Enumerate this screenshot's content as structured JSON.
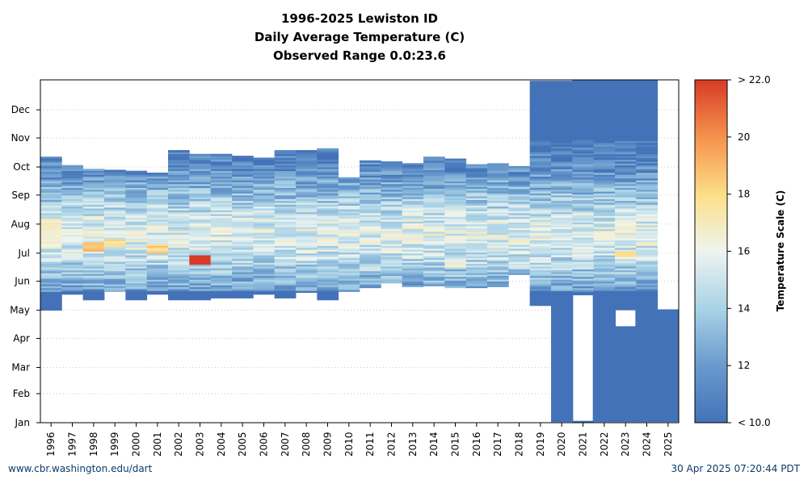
{
  "chart_data": {
    "type": "heatmap",
    "title": [
      "1996-2025 Lewiston ID",
      "Daily Average Temperature (C)",
      "Observed Range 0.0:23.6"
    ],
    "xlabel": "",
    "ylabel": "",
    "years": [
      "1996",
      "1997",
      "1998",
      "1999",
      "2000",
      "2001",
      "2002",
      "2003",
      "2004",
      "2005",
      "2006",
      "2007",
      "2008",
      "2009",
      "2010",
      "2011",
      "2012",
      "2013",
      "2014",
      "2015",
      "2016",
      "2017",
      "2018",
      "2019",
      "2020",
      "2021",
      "2022",
      "2023",
      "2024",
      "2025"
    ],
    "months": [
      "Jan",
      "Feb",
      "Mar",
      "Apr",
      "May",
      "Jun",
      "Jul",
      "Aug",
      "Sep",
      "Oct",
      "Nov",
      "Dec"
    ],
    "colorbar": {
      "label": "Temperature Scale (C)",
      "ticks": [
        "< 10.0",
        "12",
        "14",
        "16",
        "18",
        "20",
        "> 22.0"
      ],
      "tick_values": [
        10,
        12,
        14,
        16,
        18,
        20,
        22
      ],
      "min": 10,
      "max": 22
    },
    "colors": {
      "cold": "#4472b8",
      "cool": "#6a9bcd",
      "mild": "#a8d2e6",
      "neutral": "#eef4ef",
      "warm": "#fde08a",
      "hot": "#f5944d",
      "very_hot": "#d83a26"
    },
    "observed_day_ranges": [
      [
        [
          120,
          283
        ]
      ],
      [
        [
          137,
          274
        ]
      ],
      [
        [
          131,
          271
        ]
      ],
      [
        [
          140,
          270
        ]
      ],
      [
        [
          131,
          268
        ]
      ],
      [
        [
          137,
          266
        ]
      ],
      [
        [
          131,
          291
        ]
      ],
      [
        [
          131,
          286
        ]
      ],
      [
        [
          133,
          286
        ]
      ],
      [
        [
          133,
          285
        ]
      ],
      [
        [
          137,
          283
        ]
      ],
      [
        [
          133,
          291
        ]
      ],
      [
        [
          139,
          290
        ]
      ],
      [
        [
          131,
          293
        ]
      ],
      [
        [
          140,
          262
        ]
      ],
      [
        [
          144,
          280
        ]
      ],
      [
        [
          149,
          279
        ]
      ],
      [
        [
          145,
          277
        ]
      ],
      [
        [
          146,
          284
        ]
      ],
      [
        [
          144,
          281
        ]
      ],
      [
        [
          144,
          275
        ]
      ],
      [
        [
          145,
          276
        ]
      ],
      [
        [
          158,
          274
        ]
      ],
      [
        [
          125,
          365
        ]
      ],
      [
        [
          1,
          365
        ]
      ],
      [
        [
          2,
          367
        ],
        [
          0,
          1
        ]
      ],
      [
        [
          1,
          366
        ]
      ],
      [
        [
          1,
          366
        ]
      ],
      [
        [
          1,
          366
        ]
      ],
      [
        [
          1,
          120
        ]
      ]
    ],
    "gaps": [
      {
        "year": "2021",
        "from_day": 2,
        "to_day": 136,
        "note": "missing data"
      },
      {
        "year": "2023",
        "from_day": 103,
        "to_day": 120,
        "note": "missing data"
      }
    ],
    "hot_spells": [
      {
        "year": "1996",
        "from_day": 185,
        "to_day": 216,
        "max_c": 17.5
      },
      {
        "year": "1998",
        "from_day": 183,
        "to_day": 192,
        "max_c": 19.5
      },
      {
        "year": "1999",
        "from_day": 188,
        "to_day": 195,
        "max_c": 18.5
      },
      {
        "year": "2001",
        "from_day": 180,
        "to_day": 190,
        "max_c": 19.0
      },
      {
        "year": "2003",
        "from_day": 169,
        "to_day": 178,
        "max_c": 23.6
      },
      {
        "year": "2015",
        "from_day": 165,
        "to_day": 172,
        "max_c": 17.0
      },
      {
        "year": "2023",
        "from_day": 176,
        "to_day": 181,
        "max_c": 18.5
      }
    ]
  },
  "footer": {
    "left": "www.cbr.washington.edu/dart",
    "right": "30 Apr 2025 07:20:44 PDT"
  }
}
